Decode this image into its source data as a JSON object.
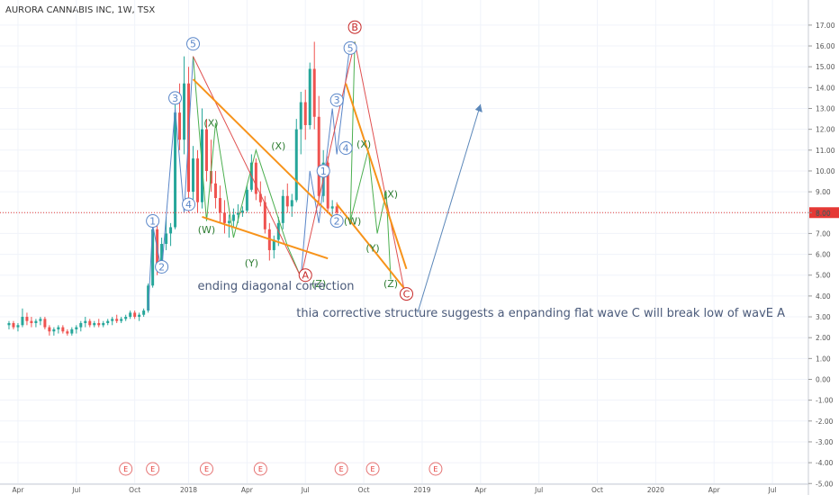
{
  "title": "AURORA CANNABIS INC, 1W, TSX",
  "last_price_label": "8.00",
  "chart_data": {
    "type": "candlestick",
    "ylim": [
      -4.6,
      17.6
    ],
    "y_ticks": [
      17,
      16,
      15,
      14,
      13,
      12,
      11,
      10,
      9,
      8,
      7,
      6,
      5,
      4,
      3,
      2,
      1,
      0,
      -1,
      -2,
      -3,
      -4,
      -5
    ],
    "y_tick_labels": [
      "17.00",
      "16.00",
      "15.00",
      "14.00",
      "13.00",
      "12.00",
      "11.00",
      "10.00",
      "9.00",
      "8.00",
      "7.00",
      "6.00",
      "5.00",
      "4.00",
      "3.00",
      "2.00",
      "1.00",
      "0.00",
      "-1.00",
      "-2.00",
      "-3.00",
      "-4.00",
      "-5.00"
    ],
    "x_ticks": [
      {
        "label": "Apr",
        "week": 2
      },
      {
        "label": "Jul",
        "week": 15
      },
      {
        "label": "Oct",
        "week": 28
      },
      {
        "label": "2018",
        "week": 40
      },
      {
        "label": "Apr",
        "week": 53
      },
      {
        "label": "Jul",
        "week": 66
      },
      {
        "label": "Oct",
        "week": 79
      },
      {
        "label": "2019",
        "week": 92
      },
      {
        "label": "Apr",
        "week": 105
      },
      {
        "label": "Jul",
        "week": 118
      },
      {
        "label": "Oct",
        "week": 131
      },
      {
        "label": "2020",
        "week": 144
      },
      {
        "label": "Apr",
        "week": 157
      },
      {
        "label": "Jul",
        "week": 170
      }
    ],
    "week_range": [
      -2,
      178
    ],
    "candles": [
      [
        2.6,
        2.8,
        2.4,
        2.7
      ],
      [
        2.7,
        2.8,
        2.4,
        2.5
      ],
      [
        2.5,
        2.7,
        2.3,
        2.6
      ],
      [
        2.6,
        3.4,
        2.5,
        3.0
      ],
      [
        3.0,
        3.2,
        2.6,
        2.8
      ],
      [
        2.8,
        3.0,
        2.5,
        2.7
      ],
      [
        2.7,
        2.9,
        2.5,
        2.8
      ],
      [
        2.8,
        3.0,
        2.6,
        2.9
      ],
      [
        2.9,
        3.0,
        2.4,
        2.5
      ],
      [
        2.5,
        2.6,
        2.1,
        2.3
      ],
      [
        2.3,
        2.5,
        2.1,
        2.4
      ],
      [
        2.4,
        2.6,
        2.2,
        2.5
      ],
      [
        2.5,
        2.6,
        2.2,
        2.3
      ],
      [
        2.3,
        2.4,
        2.1,
        2.2
      ],
      [
        2.2,
        2.5,
        2.1,
        2.4
      ],
      [
        2.4,
        2.6,
        2.2,
        2.5
      ],
      [
        2.5,
        2.8,
        2.3,
        2.7
      ],
      [
        2.7,
        3.0,
        2.5,
        2.8
      ],
      [
        2.8,
        2.9,
        2.5,
        2.6
      ],
      [
        2.6,
        2.8,
        2.5,
        2.7
      ],
      [
        2.7,
        2.9,
        2.5,
        2.6
      ],
      [
        2.6,
        2.8,
        2.5,
        2.7
      ],
      [
        2.7,
        2.9,
        2.6,
        2.8
      ],
      [
        2.8,
        3.0,
        2.6,
        2.9
      ],
      [
        2.9,
        3.1,
        2.7,
        2.8
      ],
      [
        2.8,
        3.0,
        2.7,
        2.9
      ],
      [
        2.9,
        3.1,
        2.8,
        3.0
      ],
      [
        3.0,
        3.3,
        2.9,
        3.2
      ],
      [
        3.2,
        3.3,
        2.9,
        3.0
      ],
      [
        3.0,
        3.2,
        2.8,
        3.1
      ],
      [
        3.1,
        3.4,
        3.0,
        3.3
      ],
      [
        3.3,
        4.6,
        3.2,
        4.5
      ],
      [
        4.5,
        7.4,
        4.4,
        7.2
      ],
      [
        7.2,
        7.6,
        5.0,
        5.5
      ],
      [
        5.5,
        6.8,
        5.3,
        6.5
      ],
      [
        6.5,
        7.8,
        6.2,
        7.0
      ],
      [
        7.0,
        7.5,
        6.4,
        7.3
      ],
      [
        7.3,
        13.4,
        7.2,
        12.8
      ],
      [
        12.8,
        14.2,
        11.0,
        11.5
      ],
      [
        11.5,
        15.5,
        10.8,
        14.2
      ],
      [
        14.2,
        15.0,
        8.0,
        9.0
      ],
      [
        9.0,
        11.2,
        8.2,
        10.6
      ],
      [
        10.6,
        11.0,
        8.0,
        8.5
      ],
      [
        8.5,
        13.0,
        8.2,
        12.0
      ],
      [
        12.0,
        12.5,
        9.5,
        10.0
      ],
      [
        10.0,
        11.5,
        9.0,
        9.4
      ],
      [
        9.4,
        10.0,
        8.2,
        8.7
      ],
      [
        8.7,
        9.3,
        7.5,
        8.0
      ],
      [
        8.0,
        8.6,
        7.0,
        7.5
      ],
      [
        7.5,
        7.9,
        6.8,
        7.6
      ],
      [
        7.6,
        8.2,
        7.3,
        7.9
      ],
      [
        7.9,
        8.4,
        7.5,
        8.0
      ],
      [
        8.0,
        8.3,
        7.8,
        8.1
      ],
      [
        8.1,
        9.3,
        8.0,
        9.1
      ],
      [
        9.1,
        10.8,
        9.0,
        10.4
      ],
      [
        10.4,
        10.6,
        8.6,
        8.9
      ],
      [
        8.9,
        9.5,
        8.3,
        8.5
      ],
      [
        8.5,
        8.8,
        7.0,
        7.2
      ],
      [
        7.2,
        7.5,
        5.7,
        6.2
      ],
      [
        6.2,
        6.9,
        5.8,
        6.7
      ],
      [
        6.7,
        7.8,
        6.4,
        7.5
      ],
      [
        7.5,
        9.1,
        7.2,
        8.8
      ],
      [
        8.8,
        9.4,
        8.0,
        8.3
      ],
      [
        8.3,
        8.9,
        7.8,
        8.6
      ],
      [
        8.6,
        12.5,
        8.5,
        12.0
      ],
      [
        12.0,
        13.8,
        10.8,
        13.3
      ],
      [
        13.3,
        13.9,
        11.5,
        12.2
      ],
      [
        12.2,
        15.2,
        12.0,
        14.9
      ],
      [
        14.9,
        16.2,
        12.0,
        12.6
      ],
      [
        12.6,
        13.6,
        8.3,
        8.8
      ],
      [
        8.8,
        11.0,
        8.5,
        10.4
      ],
      [
        10.4,
        10.7,
        8.0,
        8.2
      ],
      [
        8.2,
        8.6,
        7.9,
        8.3
      ],
      [
        8.3,
        8.5,
        7.8,
        8.0
      ]
    ],
    "last_price": 8.0
  },
  "annotations": {
    "labels": [
      {
        "text": "1",
        "style": "blue-circle",
        "at": [
          32,
          7.6
        ]
      },
      {
        "text": "2",
        "style": "blue-circle",
        "at": [
          34,
          5.4
        ]
      },
      {
        "text": "3",
        "style": "blue-circle",
        "at": [
          37,
          13.5
        ]
      },
      {
        "text": "4",
        "style": "blue-circle",
        "at": [
          40,
          8.4
        ]
      },
      {
        "text": "5",
        "style": "blue-circle",
        "at": [
          41,
          16.1
        ]
      },
      {
        "text": "(X)",
        "style": "green",
        "at": [
          45,
          12.3
        ]
      },
      {
        "text": "(W)",
        "style": "green",
        "at": [
          44,
          7.2
        ]
      },
      {
        "text": "(X)",
        "style": "green",
        "at": [
          60,
          11.2
        ]
      },
      {
        "text": "(Y)",
        "style": "green",
        "at": [
          54,
          5.6
        ]
      },
      {
        "text": "1",
        "style": "blue-circle",
        "at": [
          70,
          10.0
        ]
      },
      {
        "text": "2",
        "style": "blue-circle",
        "at": [
          73,
          7.6
        ]
      },
      {
        "text": "A",
        "style": "red-circle",
        "at": [
          66,
          5.0
        ]
      },
      {
        "text": "(Z)",
        "style": "green",
        "at": [
          69,
          4.6
        ]
      },
      {
        "text": "3",
        "style": "blue-circle",
        "at": [
          73,
          13.4
        ]
      },
      {
        "text": "4",
        "style": "blue-circle",
        "at": [
          75,
          11.1
        ]
      },
      {
        "text": "5",
        "style": "blue-circle",
        "at": [
          76,
          15.9
        ]
      },
      {
        "text": "B",
        "style": "red-circle",
        "at": [
          77,
          16.9
        ]
      },
      {
        "text": "(X)",
        "style": "green",
        "at": [
          79,
          11.3
        ]
      },
      {
        "text": "(W)",
        "style": "green",
        "at": [
          76.5,
          7.6
        ]
      },
      {
        "text": "(X)",
        "style": "green",
        "at": [
          85,
          8.9
        ]
      },
      {
        "text": "(Y)",
        "style": "green",
        "at": [
          81,
          6.3
        ]
      },
      {
        "text": "(Z)",
        "style": "green",
        "at": [
          85,
          4.6
        ]
      },
      {
        "text": "C",
        "style": "red-circle",
        "at": [
          88.5,
          4.1
        ]
      }
    ],
    "notes": [
      {
        "text": "ending diagonal correction",
        "at": [
          42,
          4.3
        ],
        "color": "#4a5a7a",
        "size": 13
      },
      {
        "text": "thia corrective structure suggests a enpanding flat wave C will break low of wavE A",
        "at": [
          64,
          3.0
        ],
        "color": "#4a5a7a",
        "size": 13
      }
    ],
    "e_markers": [
      26,
      32,
      44,
      56,
      74,
      81,
      95
    ]
  },
  "colors": {
    "up": "#26a69a",
    "down": "#ef5350",
    "blue_line": "#5b87c9",
    "red_line": "#e05050",
    "green_line": "#4caf50",
    "orange_line": "#f7931a",
    "arrow": "#5b87b9",
    "last_price": "#e53935",
    "grid": "#f0f3fa"
  }
}
